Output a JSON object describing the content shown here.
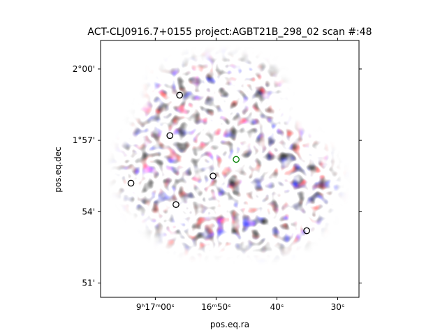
{
  "chart_data": {
    "type": "heatmap",
    "title": "ACT-CLJ0916.7+0155 project:AGBT21B_298_02 scan #:48",
    "xlabel": "pos.eq.ra",
    "ylabel": "pos.eq.dec",
    "x_ticks": [
      {
        "label": "9ʰ17ᵐ00ˢ",
        "ra_sec": 60
      },
      {
        "label": "16ᵐ50ˢ",
        "ra_sec": 50
      },
      {
        "label": "40ˢ",
        "ra_sec": 40
      },
      {
        "label": "30ˢ",
        "ra_sec": 30
      }
    ],
    "y_ticks": [
      {
        "label": "2°00'",
        "dec_arcmin": 120
      },
      {
        "label": "1°57'",
        "dec_arcmin": 117
      },
      {
        "label": "54'",
        "dec_arcmin": 114
      },
      {
        "label": "51'",
        "dec_arcmin": 111
      }
    ],
    "xlim": [
      69.0,
      26.5
    ],
    "ylim": [
      110.4,
      121.2
    ],
    "colormap": "bwr",
    "colors": {
      "positive": "#ff0000",
      "negative": "#0000ff",
      "marker_black": "#000000",
      "marker_green": "#008000"
    },
    "markers": [
      {
        "ra_sec": 56.0,
        "dec_arcmin": 118.9,
        "color": "black"
      },
      {
        "ra_sec": 57.6,
        "dec_arcmin": 117.2,
        "color": "black"
      },
      {
        "ra_sec": 64.0,
        "dec_arcmin": 115.2,
        "color": "black"
      },
      {
        "ra_sec": 56.6,
        "dec_arcmin": 114.3,
        "color": "black"
      },
      {
        "ra_sec": 50.5,
        "dec_arcmin": 115.5,
        "color": "black"
      },
      {
        "ra_sec": 35.1,
        "dec_arcmin": 113.2,
        "color": "black"
      },
      {
        "ra_sec": 46.7,
        "dec_arcmin": 116.2,
        "color": "green"
      }
    ]
  }
}
